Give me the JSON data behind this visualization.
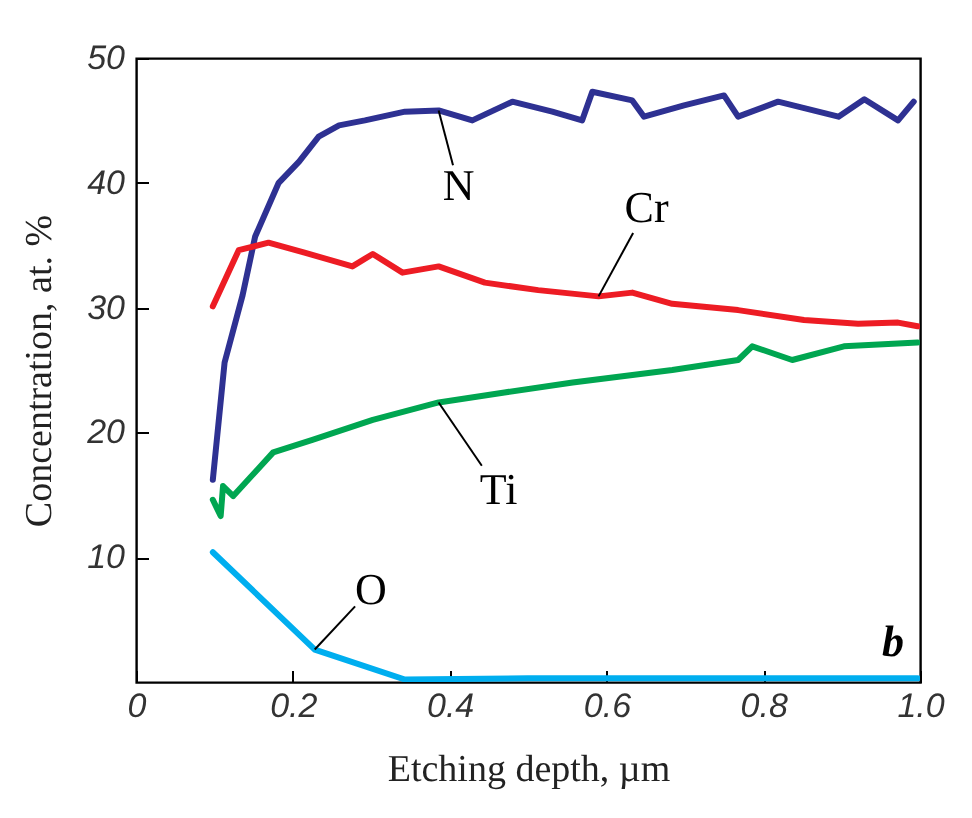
{
  "chart_data": {
    "type": "line",
    "xlabel": "Etching depth, µm",
    "ylabel": "Concentration, at. %",
    "xlim": [
      0,
      1.0
    ],
    "xticks": [
      0,
      0.2,
      0.4,
      0.6,
      0.8,
      {
        "value": 1.0,
        "label": "1.0"
      }
    ],
    "ylim": [
      0,
      50
    ],
    "yticks": [
      10,
      20,
      30,
      40,
      50
    ],
    "grid": false,
    "legend": false,
    "annotations": [
      "b"
    ],
    "series": [
      {
        "name": "N",
        "color": "#2e3192",
        "x": [
          0.098,
          0.113,
          0.136,
          0.152,
          0.182,
          0.208,
          0.233,
          0.259,
          0.292,
          0.343,
          0.386,
          0.429,
          0.48,
          0.531,
          0.569,
          0.582,
          0.633,
          0.648,
          0.699,
          0.75,
          0.768,
          0.819,
          0.896,
          0.929,
          0.972,
          0.992
        ],
        "values": [
          16.2,
          25.6,
          31,
          35.7,
          40,
          41.7,
          43.7,
          44.6,
          45,
          45.7,
          45.8,
          45,
          46.5,
          45.7,
          45,
          47.3,
          46.6,
          45.3,
          46.2,
          47,
          45.3,
          46.5,
          45.3,
          46.7,
          45,
          46.5
        ]
      },
      {
        "name": "Cr",
        "color": "#ed1c24",
        "x": [
          0.098,
          0.131,
          0.169,
          0.215,
          0.276,
          0.302,
          0.34,
          0.386,
          0.445,
          0.513,
          0.59,
          0.633,
          0.684,
          0.768,
          0.852,
          0.921,
          0.972,
          0.997
        ],
        "values": [
          30.1,
          34.6,
          35.2,
          34.4,
          33.3,
          34.3,
          32.8,
          33.3,
          32,
          31.4,
          30.9,
          31.2,
          30.3,
          29.8,
          29,
          28.7,
          28.8,
          28.5
        ]
      },
      {
        "name": "Ti",
        "color": "#00a651",
        "x": [
          0.098,
          0.108,
          0.111,
          0.124,
          0.175,
          0.225,
          0.302,
          0.386,
          0.47,
          0.557,
          0.684,
          0.768,
          0.786,
          0.837,
          0.903,
          0.997
        ],
        "values": [
          14.6,
          13.3,
          15.7,
          14.9,
          18.4,
          19.4,
          21,
          22.4,
          23.2,
          24,
          25,
          25.8,
          26.9,
          25.8,
          26.9,
          27.2
        ]
      },
      {
        "name": "O",
        "color": "#00aeef",
        "x": [
          0.098,
          0.228,
          0.343,
          0.5,
          0.7,
          0.85,
          0.997
        ],
        "values": [
          10.4,
          2.6,
          0.2,
          0.3,
          0.3,
          0.3,
          0.3
        ]
      }
    ]
  }
}
